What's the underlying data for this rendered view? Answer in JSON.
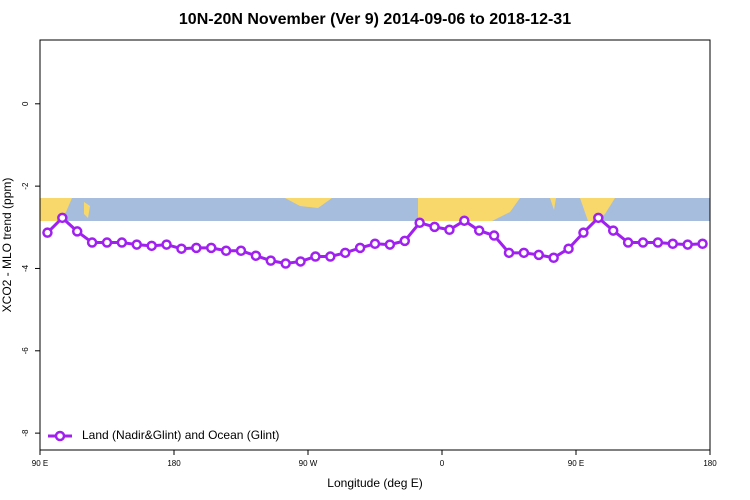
{
  "chart_data": {
    "type": "line",
    "title": "10N-20N November (Ver 9)   2014-09-06 to 2018-12-31",
    "x_label": "Longitude (deg E)",
    "y_label": "XCO2 - MLO trend (ppm)",
    "xlim": [
      90,
      540
    ],
    "xticks": [
      {
        "value": 90,
        "label": "90 E"
      },
      180,
      {
        "value": 270,
        "label": "90 W"
      },
      {
        "value": 360,
        "label": "0"
      },
      {
        "value": 450,
        "label": "90 E"
      },
      {
        "value": 540,
        "label": "180"
      }
    ],
    "ylim": [
      -8.41,
      1.55
    ],
    "yticks": [
      0,
      -2,
      -4,
      -6,
      -8
    ],
    "legend": "bottom-left",
    "x": [
      95,
      105,
      115,
      125,
      135,
      145,
      155,
      165,
      175,
      185,
      195,
      205,
      215,
      225,
      235,
      245,
      255,
      265,
      275,
      285,
      295,
      305,
      315,
      325,
      335,
      345,
      355,
      365,
      375,
      385,
      395,
      405,
      415,
      425,
      435,
      445,
      455,
      465,
      475,
      485,
      495,
      505,
      515,
      525,
      535
    ],
    "series": [
      {
        "name": "Land (Nadir&Glint) and Ocean (Glint)",
        "color": "#a020f0",
        "values": [
          -3.13,
          -2.77,
          -3.1,
          -3.37,
          -3.37,
          -3.37,
          -3.42,
          -3.45,
          -3.42,
          -3.52,
          -3.5,
          -3.5,
          -3.57,
          -3.57,
          -3.69,
          -3.81,
          -3.88,
          -3.83,
          -3.71,
          -3.71,
          -3.62,
          -3.5,
          -3.4,
          -3.42,
          -3.33,
          -2.89,
          -2.99,
          -3.06,
          -2.84,
          -3.08,
          -3.2,
          -3.62,
          -3.62,
          -3.67,
          -3.74,
          -3.52,
          -3.13,
          -2.77,
          -3.08,
          -3.37,
          -3.37,
          -3.37,
          -3.4,
          -3.42,
          -3.4
        ]
      }
    ]
  }
}
